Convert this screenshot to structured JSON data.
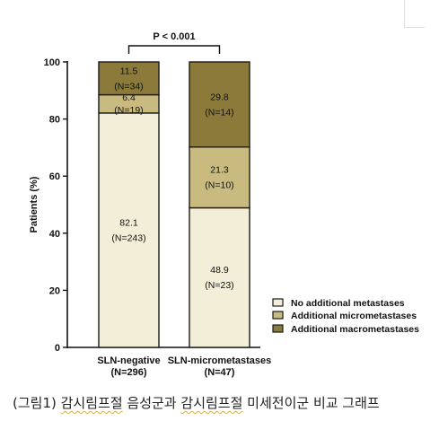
{
  "chart_data": {
    "type": "bar",
    "stacked": true,
    "ylabel": "Patients (%)",
    "ylim": [
      0,
      100
    ],
    "yticks": [
      "0",
      "20",
      "40",
      "60",
      "80",
      "100"
    ],
    "significance": "P < 0.001",
    "categories": [
      {
        "name": "SLN-negative",
        "n": "(N=296)"
      },
      {
        "name": "SLN-micrometastases",
        "n": "(N=47)"
      }
    ],
    "series": [
      {
        "name": "No additional metastases",
        "color": "#f2eed7",
        "values": [
          82.1,
          48.9
        ],
        "labels": [
          "82.1",
          "48.9"
        ],
        "ns": [
          "(N=243)",
          "(N=23)"
        ]
      },
      {
        "name": "Additional micrometastases",
        "color": "#c9bb80",
        "values": [
          6.4,
          21.3
        ],
        "labels": [
          "6.4",
          "21.3"
        ],
        "ns": [
          "(N=19)",
          "(N=10)"
        ]
      },
      {
        "name": "Additional macrometastases",
        "color": "#8b7a3a",
        "values": [
          11.5,
          29.8
        ],
        "labels": [
          "11.5",
          "29.8"
        ],
        "ns": [
          "(N=34)",
          "(N=14)"
        ]
      }
    ],
    "legend_position": "right"
  },
  "caption": {
    "prefix": "(그림1) ",
    "part1": "감시림프절",
    "part2": " 음성군과 ",
    "part3": "감시림프절",
    "part4": " 미세전이군 비교 그래프"
  }
}
